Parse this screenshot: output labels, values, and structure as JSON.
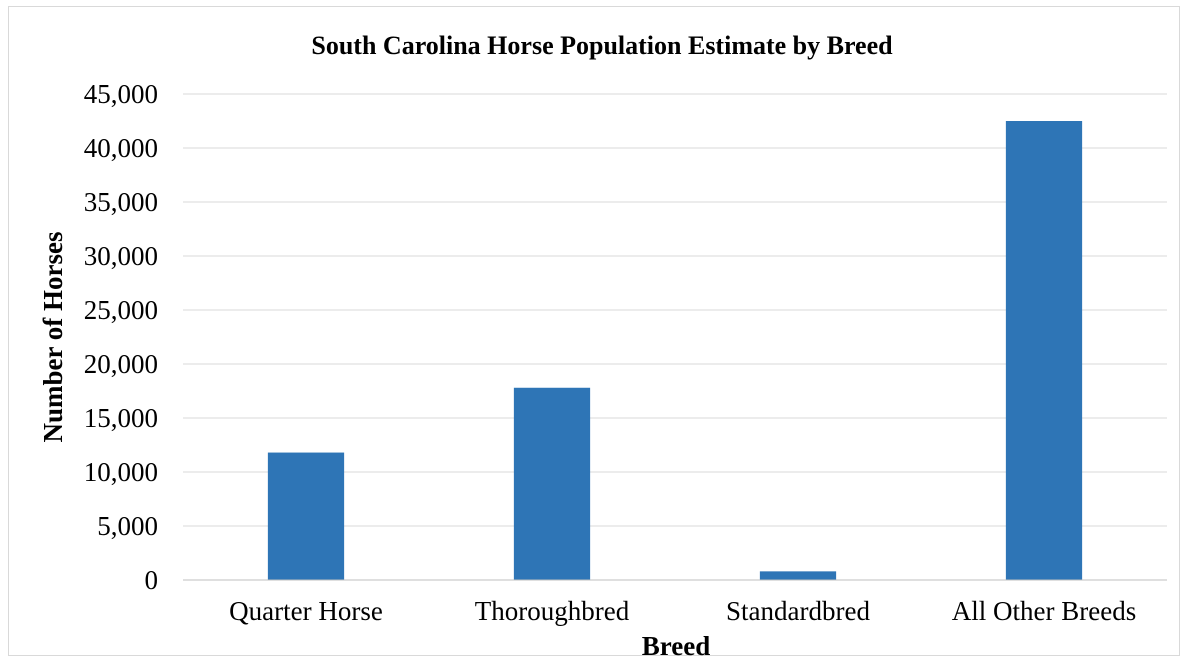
{
  "chart_data": {
    "type": "bar",
    "title": "South Carolina Horse Population Estimate by Breed",
    "xlabel": "Breed",
    "ylabel": "Number of Horses",
    "categories": [
      "Quarter Horse",
      "Thoroughbred",
      "Standardbred",
      "All Other Breeds"
    ],
    "values": [
      11800,
      17800,
      800,
      42500
    ],
    "ylim": [
      0,
      45000
    ],
    "yticks": [
      0,
      5000,
      10000,
      15000,
      20000,
      25000,
      30000,
      35000,
      40000,
      45000
    ],
    "ytick_labels": [
      "0",
      "5,000",
      "10,000",
      "15,000",
      "20,000",
      "25,000",
      "30,000",
      "35,000",
      "40,000",
      "45,000"
    ],
    "grid": true,
    "legend": "none",
    "bar_color": "#2e75b6"
  }
}
